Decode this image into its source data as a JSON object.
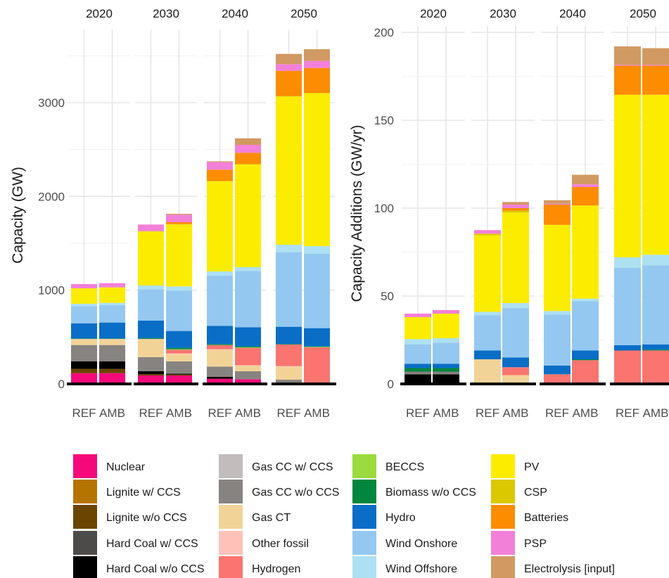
{
  "chart_data": [
    {
      "type": "bar",
      "stacked": true,
      "facets": [
        "2020",
        "2030",
        "2040",
        "2050"
      ],
      "categories": [
        "REF",
        "AMB"
      ],
      "ylabel": "Capacity (GW)",
      "ylim": [
        0,
        3750
      ],
      "yticks": [
        "0",
        "1000",
        "2000",
        "3000"
      ],
      "ytick_values": [
        0,
        1000,
        2000,
        3000
      ],
      "grid": true,
      "series": [
        {
          "name": "Nuclear",
          "color": "#f5097a",
          "values": [
            [
              115,
              115
            ],
            [
              90,
              90
            ],
            [
              55,
              50
            ],
            [
              0,
              0
            ]
          ]
        },
        {
          "name": "Lignite w/ CCS",
          "color": "#b57400",
          "values": [
            [
              0,
              0
            ],
            [
              0,
              0
            ],
            [
              0,
              0
            ],
            [
              0,
              0
            ]
          ]
        },
        {
          "name": "Lignite w/o CCS",
          "color": "#6b4500",
          "values": [
            [
              45,
              45
            ],
            [
              15,
              10
            ],
            [
              0,
              0
            ],
            [
              0,
              0
            ]
          ]
        },
        {
          "name": "Hard Coal w/ CCS",
          "color": "#4d4b49",
          "values": [
            [
              0,
              0
            ],
            [
              0,
              0
            ],
            [
              0,
              0
            ],
            [
              0,
              0
            ]
          ]
        },
        {
          "name": "Hard Coal w/o CCS",
          "color": "#000000",
          "values": [
            [
              80,
              80
            ],
            [
              30,
              10
            ],
            [
              20,
              0
            ],
            [
              0,
              0
            ]
          ]
        },
        {
          "name": "Gas CC w/ CCS",
          "color": "#c2bcbc",
          "values": [
            [
              0,
              0
            ],
            [
              0,
              0
            ],
            [
              0,
              0
            ],
            [
              15,
              0
            ]
          ]
        },
        {
          "name": "Gas CC w/o CCS",
          "color": "#878380",
          "values": [
            [
              175,
              175
            ],
            [
              150,
              130
            ],
            [
              110,
              85
            ],
            [
              30,
              0
            ]
          ]
        },
        {
          "name": "Gas CT",
          "color": "#f2d397",
          "values": [
            [
              60,
              60
            ],
            [
              190,
              80
            ],
            [
              180,
              60
            ],
            [
              140,
              0
            ]
          ]
        },
        {
          "name": "Other fossil",
          "color": "#fec2b8",
          "values": [
            [
              5,
              5
            ],
            [
              5,
              5
            ],
            [
              5,
              5
            ],
            [
              5,
              0
            ]
          ]
        },
        {
          "name": "Hydrogen",
          "color": "#fa7470",
          "values": [
            [
              0,
              0
            ],
            [
              0,
              40
            ],
            [
              45,
              185
            ],
            [
              230,
              390
            ]
          ]
        },
        {
          "name": "BECCS",
          "color": "#9bdb3d",
          "values": [
            [
              0,
              0
            ],
            [
              0,
              5
            ],
            [
              0,
              5
            ],
            [
              0,
              5
            ]
          ]
        },
        {
          "name": "Biomass w/o CCS",
          "color": "#00873e",
          "values": [
            [
              5,
              5
            ],
            [
              10,
              15
            ],
            [
              10,
              10
            ],
            [
              5,
              5
            ]
          ]
        },
        {
          "name": "Hydro",
          "color": "#0a6ec7",
          "values": [
            [
              160,
              170
            ],
            [
              185,
              180
            ],
            [
              195,
              205
            ],
            [
              185,
              195
            ]
          ]
        },
        {
          "name": "Wind Onshore",
          "color": "#94c8f0",
          "values": [
            [
              185,
              185
            ],
            [
              335,
              430
            ],
            [
              535,
              600
            ],
            [
              795,
              795
            ]
          ]
        },
        {
          "name": "Wind Offshore",
          "color": "#ade0f2",
          "values": [
            [
              25,
              25
            ],
            [
              40,
              45
            ],
            [
              45,
              40
            ],
            [
              80,
              80
            ]
          ]
        },
        {
          "name": "PV",
          "color": "#fcec00",
          "values": [
            [
              165,
              165
            ],
            [
              575,
              660
            ],
            [
              960,
              1095
            ],
            [
              1580,
              1630
            ]
          ]
        },
        {
          "name": "CSP",
          "color": "#dbc800",
          "values": [
            [
              0,
              0
            ],
            [
              5,
              5
            ],
            [
              5,
              5
            ],
            [
              5,
              5
            ]
          ]
        },
        {
          "name": "Batteries",
          "color": "#fc8c00",
          "values": [
            [
              0,
              0
            ],
            [
              0,
              20
            ],
            [
              120,
              120
            ],
            [
              270,
              265
            ]
          ]
        },
        {
          "name": "PSP",
          "color": "#f280d9",
          "values": [
            [
              45,
              45
            ],
            [
              70,
              80
            ],
            [
              80,
              85
            ],
            [
              70,
              75
            ]
          ]
        },
        {
          "name": "Electrolysis [input]",
          "color": "#d19a63",
          "values": [
            [
              0,
              0
            ],
            [
              0,
              10
            ],
            [
              10,
              70
            ],
            [
              110,
              125
            ]
          ]
        }
      ]
    },
    {
      "type": "bar",
      "stacked": true,
      "facets": [
        "2020",
        "2030",
        "2040",
        "2050"
      ],
      "categories": [
        "REF",
        "AMB"
      ],
      "ylabel": "Capacity Additions (GW/yr)",
      "ylim": [
        0,
        202
      ],
      "yticks": [
        "0",
        "50",
        "100",
        "150",
        "200"
      ],
      "ytick_values": [
        0,
        50,
        100,
        150,
        200
      ],
      "grid": true,
      "series": [
        {
          "name": "Nuclear",
          "color": "#f5097a",
          "values": [
            [
              0,
              0
            ],
            [
              0,
              0
            ],
            [
              0,
              0
            ],
            [
              0,
              0
            ]
          ]
        },
        {
          "name": "Lignite w/ CCS",
          "color": "#b57400",
          "values": [
            [
              0,
              0
            ],
            [
              0,
              0
            ],
            [
              0,
              0
            ],
            [
              0,
              0
            ]
          ]
        },
        {
          "name": "Lignite w/o CCS",
          "color": "#6b4500",
          "values": [
            [
              0,
              0
            ],
            [
              0,
              0
            ],
            [
              0,
              0
            ],
            [
              0,
              0
            ]
          ]
        },
        {
          "name": "Hard Coal w/ CCS",
          "color": "#4d4b49",
          "values": [
            [
              0,
              0
            ],
            [
              0,
              0
            ],
            [
              0,
              0
            ],
            [
              0,
              0
            ]
          ]
        },
        {
          "name": "Hard Coal w/o CCS",
          "color": "#000000",
          "values": [
            [
              5.5,
              5.5
            ],
            [
              0,
              0
            ],
            [
              0,
              0
            ],
            [
              0,
              0
            ]
          ]
        },
        {
          "name": "Gas CC w/ CCS",
          "color": "#c2bcbc",
          "values": [
            [
              0,
              0
            ],
            [
              0,
              0
            ],
            [
              0,
              0
            ],
            [
              0,
              0
            ]
          ]
        },
        {
          "name": "Gas CC w/o CCS",
          "color": "#878380",
          "values": [
            [
              1.5,
              1.5
            ],
            [
              0,
              0
            ],
            [
              0,
              0
            ],
            [
              0,
              0
            ]
          ]
        },
        {
          "name": "Gas CT",
          "color": "#f2d397",
          "values": [
            [
              0,
              0
            ],
            [
              14,
              5
            ],
            [
              0,
              0
            ],
            [
              0,
              0
            ]
          ]
        },
        {
          "name": "Other fossil",
          "color": "#fec2b8",
          "values": [
            [
              0,
              0
            ],
            [
              0,
              0
            ],
            [
              0,
              0
            ],
            [
              0,
              0
            ]
          ]
        },
        {
          "name": "Hydrogen",
          "color": "#fa7470",
          "values": [
            [
              0,
              0
            ],
            [
              0,
              4.5
            ],
            [
              5.5,
              13.5
            ],
            [
              19,
              19
            ]
          ]
        },
        {
          "name": "BECCS",
          "color": "#9bdb3d",
          "values": [
            [
              0,
              0
            ],
            [
              0,
              0
            ],
            [
              0,
              0
            ],
            [
              0,
              0
            ]
          ]
        },
        {
          "name": "Biomass w/o CCS",
          "color": "#00873e",
          "values": [
            [
              2,
              2
            ],
            [
              0,
              0
            ],
            [
              0,
              0.5
            ],
            [
              0,
              0.5
            ]
          ]
        },
        {
          "name": "Hydro",
          "color": "#0a6ec7",
          "values": [
            [
              2.5,
              2.5
            ],
            [
              5,
              5.5
            ],
            [
              5,
              5
            ],
            [
              3,
              3
            ]
          ]
        },
        {
          "name": "Wind Onshore",
          "color": "#94c8f0",
          "values": [
            [
              11,
              12
            ],
            [
              20,
              28
            ],
            [
              29,
              28
            ],
            [
              44,
              45
            ]
          ]
        },
        {
          "name": "Wind Offshore",
          "color": "#ade0f2",
          "values": [
            [
              3,
              2.5
            ],
            [
              2,
              3
            ],
            [
              2,
              1.5
            ],
            [
              6,
              6
            ]
          ]
        },
        {
          "name": "PV",
          "color": "#fcec00",
          "values": [
            [
              12.5,
              14
            ],
            [
              43.5,
              51.5
            ],
            [
              49,
              53
            ],
            [
              92.5,
              91
            ]
          ]
        },
        {
          "name": "CSP",
          "color": "#dbc800",
          "values": [
            [
              0,
              0
            ],
            [
              1,
              1
            ],
            [
              0,
              0
            ],
            [
              0,
              0
            ]
          ]
        },
        {
          "name": "Batteries",
          "color": "#fc8c00",
          "values": [
            [
              0,
              0
            ],
            [
              0,
              1.5
            ],
            [
              11.5,
              10.5
            ],
            [
              16.5,
              16.5
            ]
          ]
        },
        {
          "name": "PSP",
          "color": "#f280d9",
          "values": [
            [
              2,
              2
            ],
            [
              2,
              2
            ],
            [
              0.5,
              1.5
            ],
            [
              0.5,
              0.5
            ]
          ]
        },
        {
          "name": "Electrolysis [input]",
          "color": "#d19a63",
          "values": [
            [
              0,
              0
            ],
            [
              0,
              1.5
            ],
            [
              2,
              5.5
            ],
            [
              10.5,
              9.5
            ]
          ]
        }
      ]
    }
  ]
}
